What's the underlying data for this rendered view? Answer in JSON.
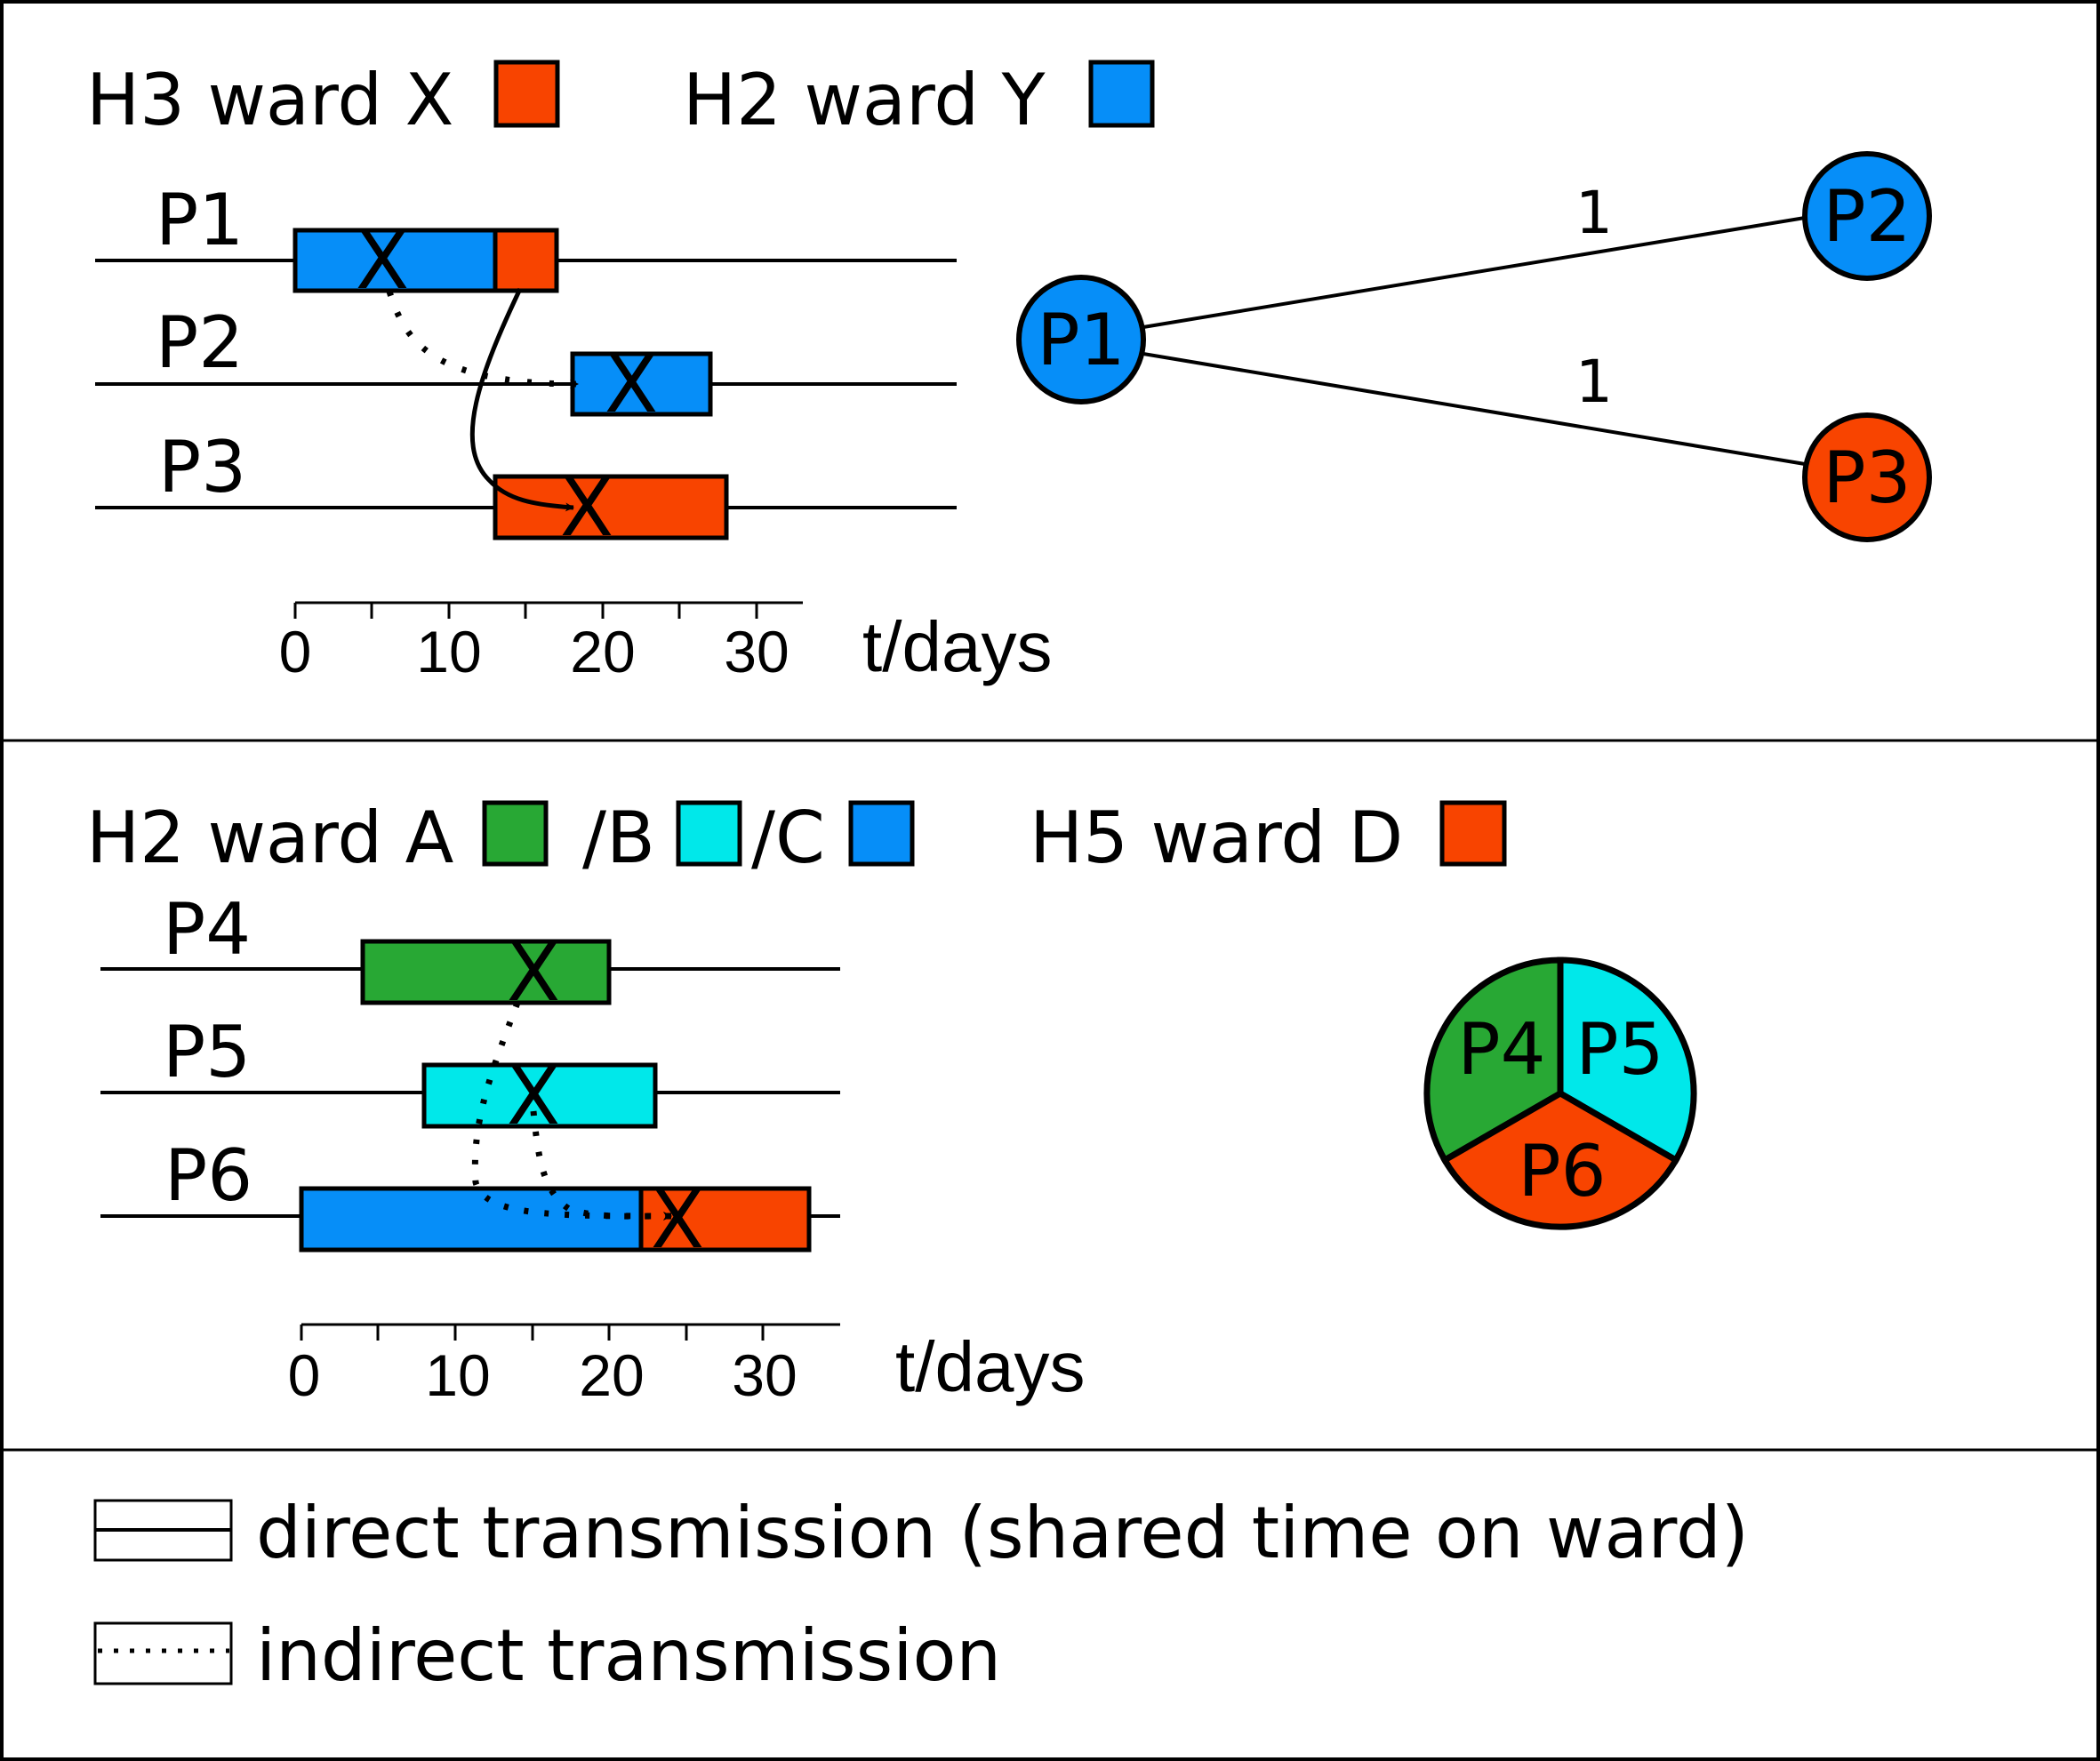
{
  "colors": {
    "orange": "#F84400",
    "blue": "#068EF8",
    "green": "#28A834",
    "cyan": "#00E8EA"
  },
  "panel1": {
    "legend": [
      {
        "label": "H3 ward X",
        "color": "orange"
      },
      {
        "label": "H2 ward Y",
        "color": "blue"
      }
    ],
    "patients": [
      {
        "label": "P1",
        "stays": [
          {
            "ward": "H2 ward Y",
            "start": 0,
            "end": 13
          },
          {
            "ward": "H3 ward X",
            "start": 13,
            "end": 17
          }
        ],
        "infection_day": 6
      },
      {
        "label": "P2",
        "stays": [
          {
            "ward": "H2 ward Y",
            "start": 18,
            "end": 27
          }
        ],
        "infection_day": 22
      },
      {
        "label": "P3",
        "stays": [
          {
            "ward": "H3 ward X",
            "start": 13,
            "end": 28
          }
        ],
        "infection_day": 18
      }
    ],
    "transmissions": [
      {
        "from": "P1",
        "to": "P2",
        "type": "indirect"
      },
      {
        "from": "P1",
        "to": "P3",
        "type": "direct"
      }
    ],
    "axis": {
      "ticks": [
        "0",
        "10",
        "20",
        "30"
      ],
      "label": "t/days"
    },
    "marker": "X",
    "network": {
      "nodes": [
        {
          "label": "P1",
          "color": "blue"
        },
        {
          "label": "P2",
          "color": "blue"
        },
        {
          "label": "P3",
          "color": "orange"
        }
      ],
      "edges": [
        {
          "from": "P1",
          "to": "P2",
          "label": "1"
        },
        {
          "from": "P1",
          "to": "P3",
          "label": "1"
        }
      ]
    }
  },
  "panel2": {
    "legend": {
      "prefix": "H2 ward A",
      "b": "/B",
      "c": "/C",
      "d": "H5 ward D"
    },
    "patients": [
      {
        "label": "P4",
        "stays": [
          {
            "ward": "A",
            "start": 4,
            "end": 20
          }
        ],
        "infection_day": 15
      },
      {
        "label": "P5",
        "stays": [
          {
            "ward": "B",
            "start": 8,
            "end": 23
          }
        ],
        "infection_day": 15
      },
      {
        "label": "P6",
        "stays": [
          {
            "ward": "C",
            "start": 0,
            "end": 22
          },
          {
            "ward": "D",
            "start": 22,
            "end": 33
          }
        ],
        "infection_day": 24
      }
    ],
    "transmissions": [
      {
        "from": "P4",
        "to": "P6",
        "type": "indirect"
      },
      {
        "from": "P5",
        "to": "P6",
        "type": "indirect"
      }
    ],
    "axis": {
      "ticks": [
        "0",
        "10",
        "20",
        "30"
      ],
      "label": "t/days"
    },
    "marker": "X",
    "cluster": [
      {
        "label": "P4",
        "color": "green"
      },
      {
        "label": "P5",
        "color": "cyan"
      },
      {
        "label": "P6",
        "color": "orange"
      }
    ]
  },
  "key": {
    "direct": "direct transmission (shared time on ward)",
    "indirect": "indirect transmission"
  }
}
